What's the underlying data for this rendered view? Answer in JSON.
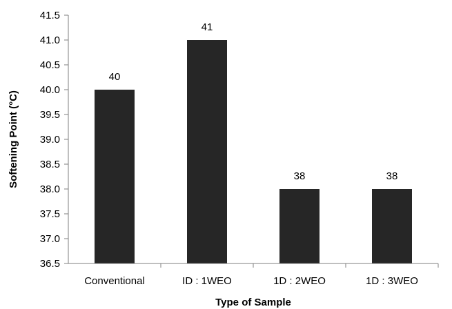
{
  "chart_data": {
    "type": "bar",
    "categories": [
      "Conventional",
      "ID : 1WEO",
      "1D : 2WEO",
      "1D : 3WEO"
    ],
    "values": [
      40,
      41,
      38,
      38
    ],
    "data_labels": [
      "40",
      "41",
      "38",
      "38"
    ],
    "title": "",
    "xlabel": "Type of Sample",
    "ylabel": "Softening Point (°C)",
    "ylim": [
      36.5,
      41.5
    ],
    "y_ticks": [
      36.5,
      37.0,
      37.5,
      38.0,
      38.5,
      39.0,
      39.5,
      40.0,
      40.5,
      41.0,
      41.5
    ],
    "y_tick_labels": [
      "36.5",
      "37.0",
      "37.5",
      "38.0",
      "38.5",
      "39.0",
      "39.5",
      "40.0",
      "40.5",
      "41.0",
      "41.5"
    ],
    "grid": false,
    "legend": "none",
    "bar_color": "#262626",
    "axis_color": "#7f7f7f"
  }
}
